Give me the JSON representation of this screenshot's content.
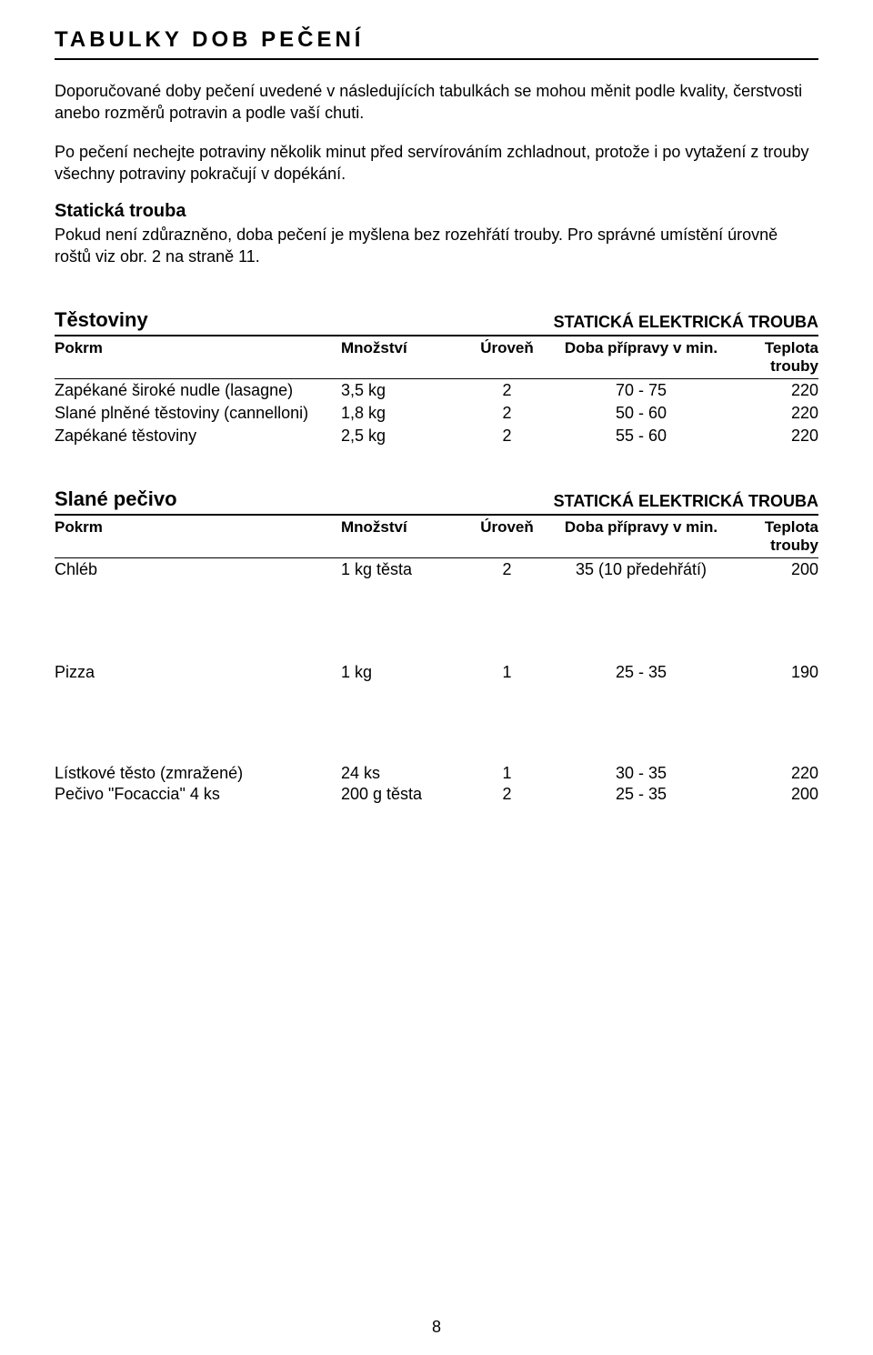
{
  "title": "TABULKY DOB PEČENÍ",
  "intro1": "Doporučované doby pečení uvedené v následujících tabulkách se mohou měnit podle kvality, čerstvosti anebo rozměrů potravin a podle vaší chuti.",
  "intro2": "Po pečení nechejte potraviny několik minut před servírováním zchladnout, protože i po vytažení z trouby všechny potraviny pokračují v dopékání.",
  "sub_heading": "Statická trouba",
  "sub_body": "Pokud není zdůrazněno, doba pečení je myšlena bez rozehřátí trouby. Pro správné umístění úrovně roštů viz obr. 2 na straně 11.",
  "columns": {
    "pokrm": "Pokrm",
    "mnozstvi": "Množství",
    "uroven": "Úroveň",
    "doba": "Doba přípravy v min.",
    "teplota": "Teplota trouby"
  },
  "section1": {
    "title": "Těstoviny",
    "right": "STATICKÁ ELEKTRICKÁ TROUBA",
    "rows": [
      {
        "pokrm": "Zapékané široké nudle (lasagne)",
        "mnozstvi": "3,5 kg",
        "uroven": "2",
        "doba": "70 - 75",
        "teplota": "220"
      },
      {
        "pokrm": "Slané plněné těstoviny (cannelloni)",
        "mnozstvi": "1,8 kg",
        "uroven": "2",
        "doba": "50 - 60",
        "teplota": "220"
      },
      {
        "pokrm": "Zapékané těstoviny",
        "mnozstvi": "2,5 kg",
        "uroven": "2",
        "doba": "55 - 60",
        "teplota": "220"
      }
    ]
  },
  "section2": {
    "title": "Slané pečivo",
    "right": "STATICKÁ ELEKTRICKÁ TROUBA",
    "rows": [
      {
        "pokrm": "Chléb",
        "mnozstvi": "1 kg těsta",
        "uroven": "2",
        "doba": "35 (10 předehřátí)",
        "teplota": "200"
      }
    ]
  },
  "loose1": {
    "pokrm": "Pizza",
    "mnozstvi": "1 kg",
    "uroven": "1",
    "doba": "25 - 35",
    "teplota": "190"
  },
  "loose2a": {
    "pokrm": "Lístkové těsto (zmražené)",
    "mnozstvi": "24 ks",
    "uroven": "1",
    "doba": "30 - 35",
    "teplota": "220"
  },
  "loose2b": {
    "pokrm": "Pečivo \"Focaccia\" 4 ks",
    "mnozstvi": "200 g těsta",
    "uroven": "2",
    "doba": "25 - 35",
    "teplota": "200"
  },
  "page_number": "8"
}
